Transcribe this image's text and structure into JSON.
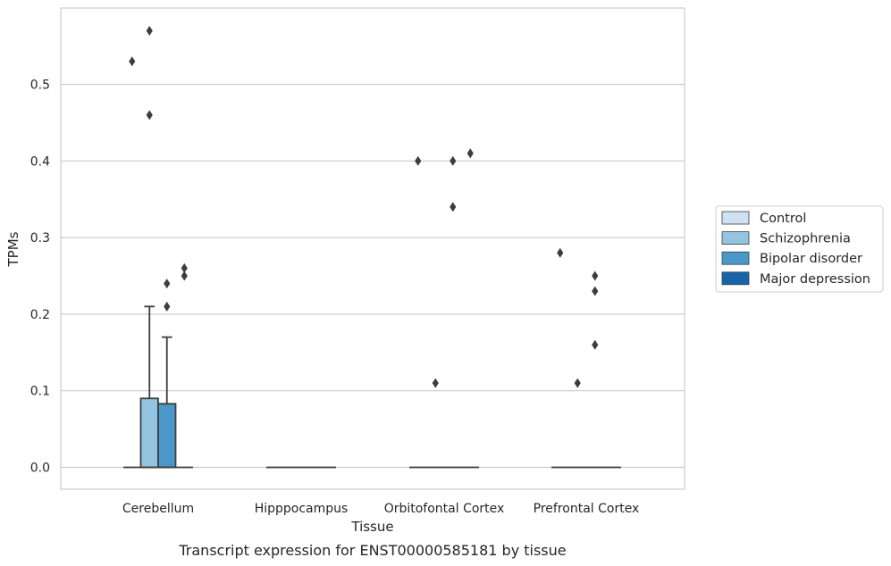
{
  "caption": "Transcript expression for ENST00000585181 by tissue",
  "chart_data": {
    "type": "box",
    "xlabel": "Tissue",
    "ylabel": "TPMs",
    "ylim": [
      -0.028,
      0.598
    ],
    "yticks": [
      "0.0",
      "0.1",
      "0.2",
      "0.3",
      "0.4",
      "0.5"
    ],
    "categories": [
      "Cerebellum",
      "Hipppocampus",
      "Orbitofontal Cortex",
      "Prefrontal Cortex"
    ],
    "grid": "horizontal",
    "legend_position": "right",
    "series": [
      {
        "name": "Control",
        "color": "#d0e1f2",
        "boxes": [
          {
            "q1": 0,
            "median": 0,
            "q3": 0,
            "whisker_low": 0,
            "whisker_high": 0,
            "outliers": [
              0.53
            ]
          },
          {
            "q1": 0,
            "median": 0,
            "q3": 0,
            "whisker_low": 0,
            "whisker_high": 0,
            "outliers": []
          },
          {
            "q1": 0,
            "median": 0,
            "q3": 0,
            "whisker_low": 0,
            "whisker_high": 0,
            "outliers": [
              0.4
            ]
          },
          {
            "q1": 0,
            "median": 0,
            "q3": 0,
            "whisker_low": 0,
            "whisker_high": 0,
            "outliers": [
              0.28
            ]
          }
        ]
      },
      {
        "name": "Schizophrenia",
        "color": "#94c4df",
        "boxes": [
          {
            "q1": 0,
            "median": 0,
            "q3": 0.09,
            "whisker_low": 0,
            "whisker_high": 0.21,
            "outliers": [
              0.46,
              0.57
            ]
          },
          {
            "q1": 0,
            "median": 0,
            "q3": 0,
            "whisker_low": 0,
            "whisker_high": 0,
            "outliers": []
          },
          {
            "q1": 0,
            "median": 0,
            "q3": 0,
            "whisker_low": 0,
            "whisker_high": 0,
            "outliers": [
              0.11
            ]
          },
          {
            "q1": 0,
            "median": 0,
            "q3": 0,
            "whisker_low": 0,
            "whisker_high": 0,
            "outliers": [
              0.11
            ]
          }
        ]
      },
      {
        "name": "Bipolar disorder",
        "color": "#4a98c9",
        "boxes": [
          {
            "q1": 0,
            "median": 0,
            "q3": 0.083,
            "whisker_low": 0,
            "whisker_high": 0.17,
            "outliers": [
              0.21,
              0.24
            ]
          },
          {
            "q1": 0,
            "median": 0,
            "q3": 0,
            "whisker_low": 0,
            "whisker_high": 0,
            "outliers": []
          },
          {
            "q1": 0,
            "median": 0,
            "q3": 0,
            "whisker_low": 0,
            "whisker_high": 0,
            "outliers": [
              0.34,
              0.4
            ]
          },
          {
            "q1": 0,
            "median": 0,
            "q3": 0,
            "whisker_low": 0,
            "whisker_high": 0,
            "outliers": [
              0.16,
              0.23,
              0.25
            ]
          }
        ]
      },
      {
        "name": "Major depression",
        "color": "#1764ab",
        "boxes": [
          {
            "q1": 0,
            "median": 0,
            "q3": 0,
            "whisker_low": 0,
            "whisker_high": 0,
            "outliers": [
              0.25,
              0.26
            ]
          },
          {
            "q1": 0,
            "median": 0,
            "q3": 0,
            "whisker_low": 0,
            "whisker_high": 0,
            "outliers": []
          },
          {
            "q1": 0,
            "median": 0,
            "q3": 0,
            "whisker_low": 0,
            "whisker_high": 0,
            "outliers": [
              0.41
            ]
          },
          {
            "q1": 0,
            "median": 0,
            "q3": 0,
            "whisker_low": 0,
            "whisker_high": 0,
            "outliers": []
          }
        ]
      }
    ]
  }
}
